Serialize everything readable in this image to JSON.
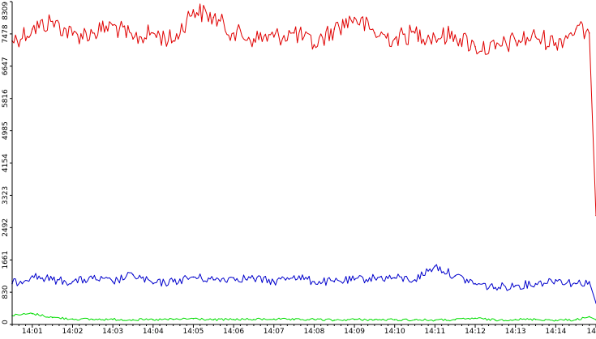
{
  "chart_data": {
    "type": "line",
    "title": "",
    "xlabel": "",
    "ylabel": "",
    "ylim": [
      0,
      8309
    ],
    "y_ticks": [
      0,
      830,
      1661,
      2492,
      3323,
      4154,
      4985,
      5816,
      6647,
      7478,
      8309
    ],
    "x_ticks": [
      "14:01",
      "14:02",
      "14:03",
      "14:04",
      "14:05",
      "14:06",
      "14:07",
      "14:08",
      "14:09",
      "14:10",
      "14:11",
      "14:12",
      "14:13",
      "14:14",
      "14"
    ],
    "x_range": [
      "14:00:30",
      "14:15:00"
    ],
    "grid": false,
    "legend": "none",
    "series": [
      {
        "color": "#e00000",
        "x": [
          "14:00:30",
          "14:01:00",
          "14:01:30",
          "14:02:00",
          "14:02:30",
          "14:03:00",
          "14:03:30",
          "14:04:00",
          "14:04:30",
          "14:05:00",
          "14:05:30",
          "14:06:00",
          "14:06:30",
          "14:07:00",
          "14:07:30",
          "14:08:00",
          "14:08:30",
          "14:09:00",
          "14:09:30",
          "14:10:00",
          "14:10:30",
          "14:11:00",
          "14:11:30",
          "14:12:00",
          "14:12:30",
          "14:13:00",
          "14:13:30",
          "14:14:00",
          "14:14:30",
          "14:14:50",
          "14:15:00"
        ],
        "values": [
          7300,
          7600,
          7800,
          7450,
          7500,
          7700,
          7350,
          7500,
          7300,
          8100,
          7900,
          7500,
          7350,
          7400,
          7500,
          7200,
          7600,
          7900,
          7500,
          7350,
          7500,
          7400,
          7450,
          7150,
          7100,
          7300,
          7400,
          7250,
          7600,
          7500,
          2800
        ]
      },
      {
        "color": "#0000cc",
        "x": [
          "14:00:30",
          "14:01:00",
          "14:01:30",
          "14:02:00",
          "14:02:30",
          "14:03:00",
          "14:03:30",
          "14:04:00",
          "14:04:30",
          "14:05:00",
          "14:05:30",
          "14:06:00",
          "14:06:30",
          "14:07:00",
          "14:07:30",
          "14:08:00",
          "14:08:30",
          "14:09:00",
          "14:09:30",
          "14:10:00",
          "14:10:30",
          "14:11:00",
          "14:11:30",
          "14:12:00",
          "14:12:30",
          "14:13:00",
          "14:13:30",
          "14:14:00",
          "14:14:30",
          "14:14:50",
          "14:15:00"
        ],
        "values": [
          1050,
          1250,
          1150,
          1100,
          1180,
          1100,
          1280,
          1050,
          1100,
          1220,
          1150,
          1200,
          1180,
          1100,
          1250,
          1100,
          1100,
          1150,
          1200,
          1200,
          1150,
          1500,
          1250,
          1050,
          950,
          1000,
          1050,
          1150,
          1050,
          1100,
          550
        ]
      },
      {
        "color": "#00dd00",
        "x": [
          "14:00:30",
          "14:01:00",
          "14:01:30",
          "14:02:00",
          "14:02:30",
          "14:03:00",
          "14:03:30",
          "14:04:00",
          "14:04:30",
          "14:05:00",
          "14:05:30",
          "14:06:00",
          "14:06:30",
          "14:07:00",
          "14:07:30",
          "14:08:00",
          "14:08:30",
          "14:09:00",
          "14:09:30",
          "14:10:00",
          "14:10:30",
          "14:11:00",
          "14:11:30",
          "14:12:00",
          "14:12:30",
          "14:13:00",
          "14:13:30",
          "14:14:00",
          "14:14:30",
          "14:14:50",
          "14:15:00"
        ],
        "values": [
          230,
          280,
          180,
          140,
          130,
          130,
          120,
          120,
          130,
          150,
          120,
          130,
          130,
          140,
          120,
          130,
          110,
          130,
          120,
          120,
          120,
          110,
          120,
          160,
          110,
          130,
          130,
          110,
          120,
          200,
          120
        ]
      }
    ]
  }
}
